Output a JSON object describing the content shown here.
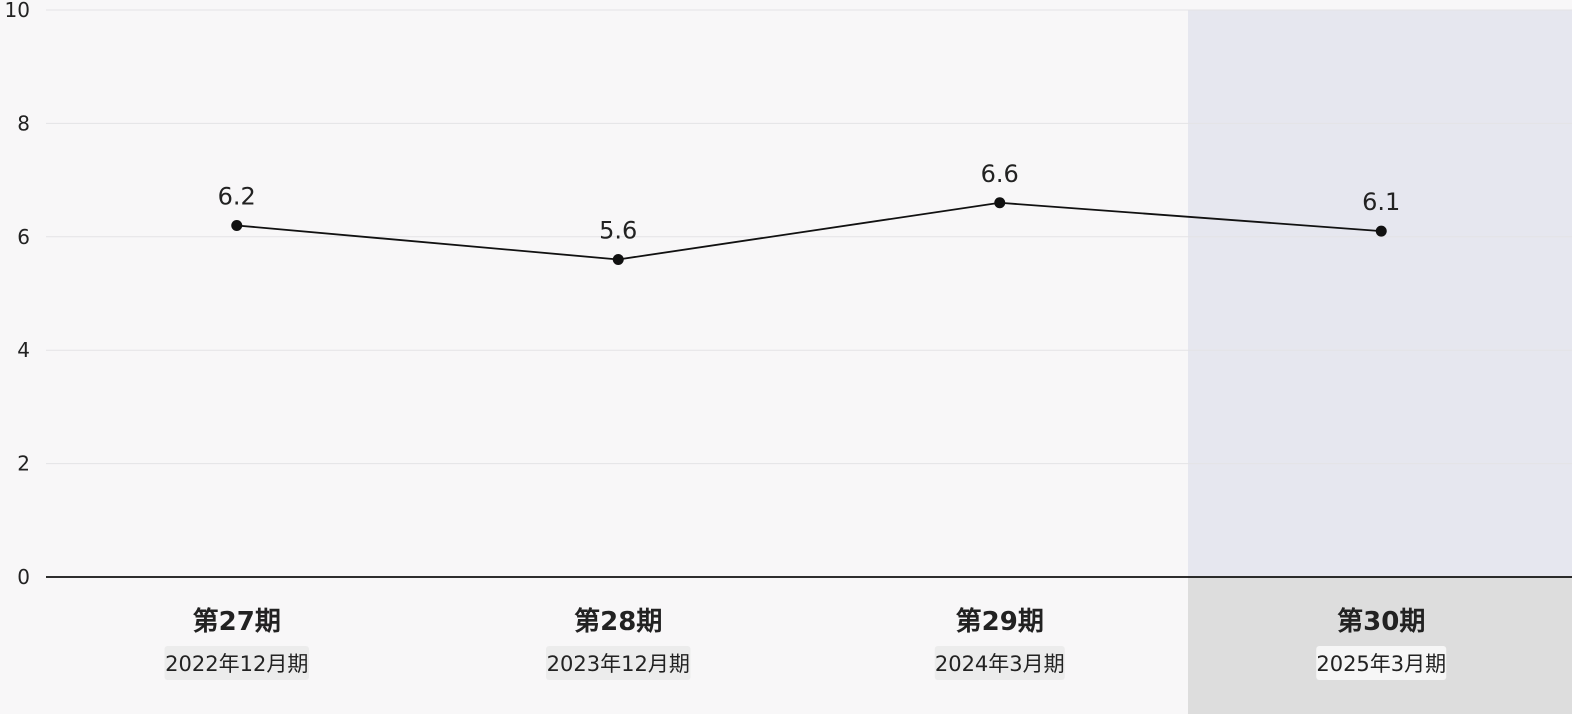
{
  "chart_data": {
    "type": "line",
    "x": [
      "第27期",
      "第28期",
      "第29期",
      "第30期"
    ],
    "sublabels": [
      "2022年12月期",
      "2023年12月期",
      "2024年3月期",
      "2025年3月期"
    ],
    "values": [
      6.2,
      5.6,
      6.6,
      6.1
    ],
    "data_labels": [
      "6.2",
      "5.6",
      "6.6",
      "6.1"
    ],
    "y_ticks": [
      "0",
      "2",
      "4",
      "6",
      "8",
      "10"
    ],
    "ylim": [
      0,
      10
    ],
    "grid": true,
    "legend": "none",
    "highlight_index": 3,
    "colors": {
      "line": "#111111",
      "marker": "#111111",
      "grid": "#e4e3e6",
      "axis": "#111111",
      "highlight_band": "#e6e7ef",
      "highlight_label_band": "#dddddd",
      "date_badge": "#ececec",
      "date_badge_highlight": "#f6f6f6"
    }
  }
}
